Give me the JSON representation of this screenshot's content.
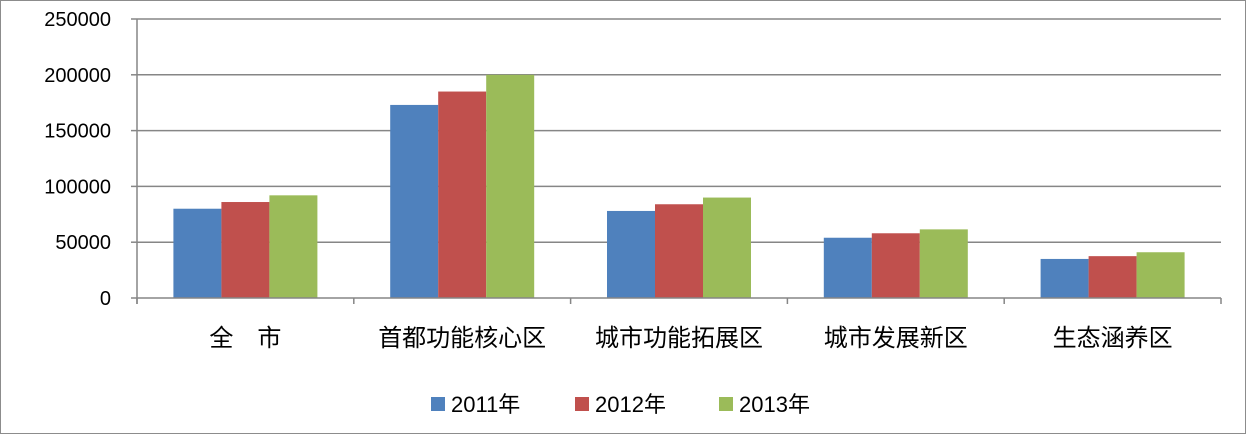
{
  "chart_data": {
    "type": "bar",
    "categories": [
      "全　市",
      "首都功能核心区",
      "城市功能拓展区",
      "城市发展新区",
      "生态涵养区"
    ],
    "series": [
      {
        "name": "2011年",
        "color": "#4F81BD",
        "values": [
          80000,
          173000,
          78000,
          54000,
          35000
        ]
      },
      {
        "name": "2012年",
        "color": "#C0504D",
        "values": [
          86000,
          185000,
          84000,
          58000,
          37500
        ]
      },
      {
        "name": "2013年",
        "color": "#9BBB59",
        "values": [
          92000,
          200000,
          90000,
          61500,
          41000
        ]
      }
    ],
    "yticks": [
      "0",
      "50000",
      "100000",
      "150000",
      "200000",
      "250000"
    ],
    "ylim": [
      0,
      250000
    ],
    "grid": true,
    "legend_position": "bottom",
    "title": "",
    "xlabel": "",
    "ylabel": ""
  }
}
